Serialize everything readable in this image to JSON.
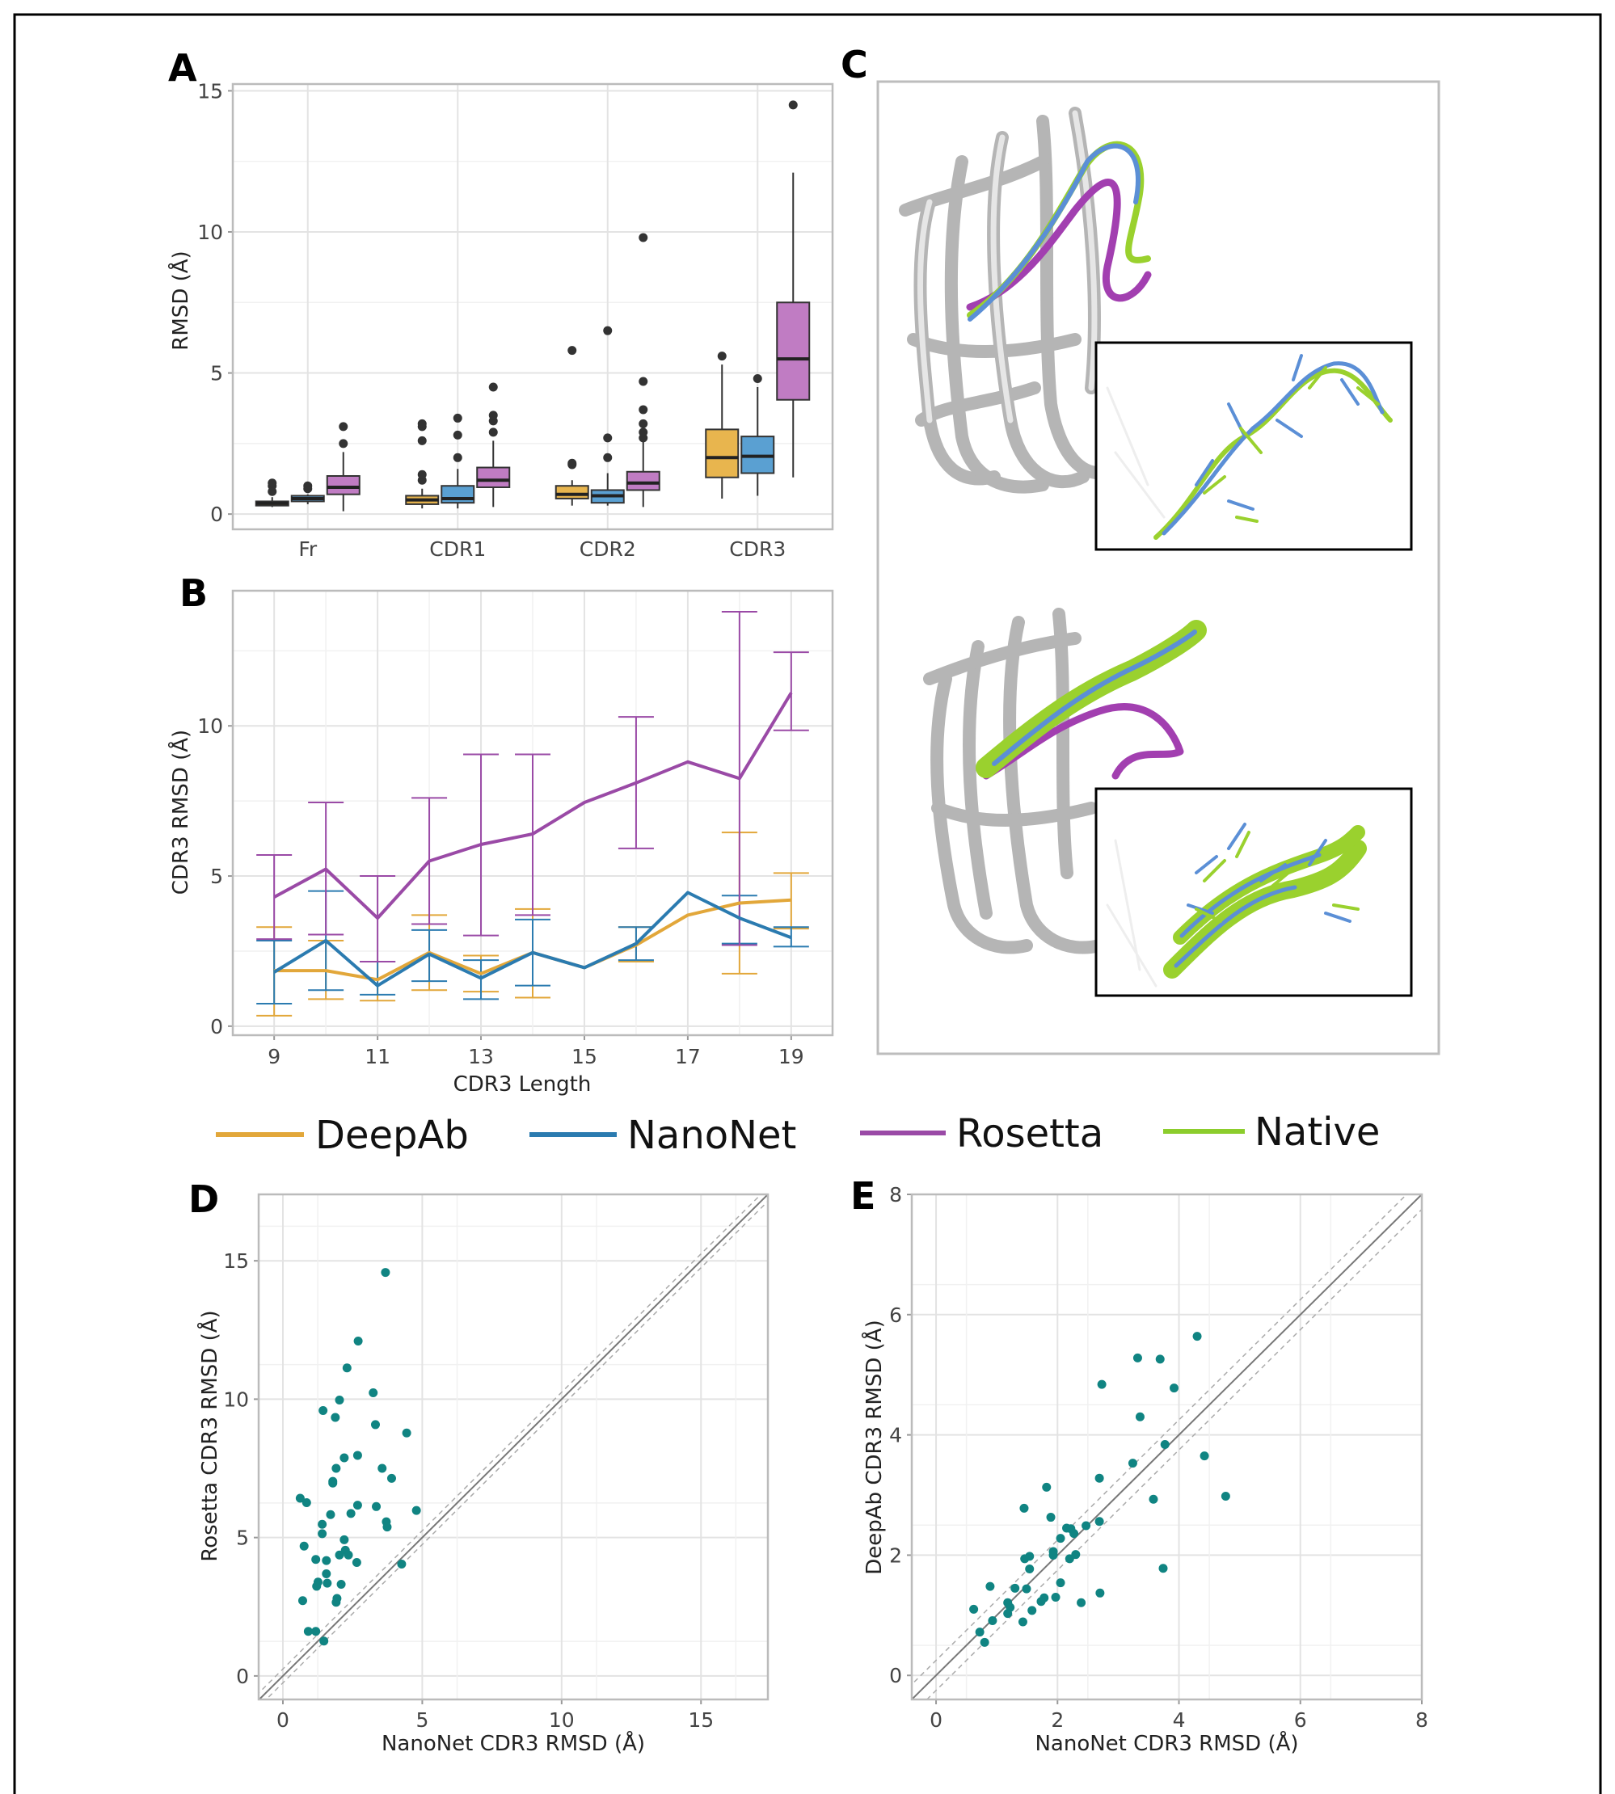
{
  "panels": {
    "a": "A",
    "b": "B",
    "c": "C",
    "d": "D",
    "e": "E"
  },
  "legend": {
    "entries": [
      {
        "name": "DeepAb",
        "color": "#e2a73a"
      },
      {
        "name": "NanoNet",
        "color": "#2b7bb0"
      },
      {
        "name": "Rosetta",
        "color": "#9a4aa6"
      },
      {
        "name": "Native",
        "color": "#8ccd2c"
      }
    ]
  },
  "panel_c": {
    "description_colors": {
      "framework": "#c8c8c8",
      "deepab_nanonet_loop": "#5b8fd6",
      "rosetta_loop": "#a23fb0",
      "native_loop": "#9ad12e"
    }
  },
  "chart_data": [
    {
      "id": "A",
      "type": "box",
      "ylabel": "RMSD (Å)",
      "xlabel": "",
      "categories": [
        "Fr",
        "CDR1",
        "CDR2",
        "CDR3"
      ],
      "series": [
        "DeepAb",
        "NanoNet",
        "Rosetta"
      ],
      "fills": [
        "#e8b54e",
        "#5aa0d2",
        "#c07cc3"
      ],
      "yticks": [
        "0",
        "5",
        "10",
        "15"
      ],
      "ylim": [
        -0.54,
        15.24
      ],
      "grid": true,
      "groups": [
        {
          "category": "Fr",
          "boxes": [
            {
              "series": "DeepAb",
              "low": 0.25,
              "q1": 0.3,
              "median": 0.38,
              "q3": 0.45,
              "high": 0.6,
              "outliers": [
                0.8,
                1.0,
                1.1
              ]
            },
            {
              "series": "NanoNet",
              "low": 0.35,
              "q1": 0.45,
              "median": 0.55,
              "q3": 0.65,
              "high": 0.7,
              "outliers": [
                0.9,
                1.0
              ]
            },
            {
              "series": "Rosetta",
              "low": 0.1,
              "q1": 0.7,
              "median": 0.95,
              "q3": 1.35,
              "high": 2.2,
              "outliers": [
                2.5,
                3.1
              ]
            }
          ]
        },
        {
          "category": "CDR1",
          "boxes": [
            {
              "series": "DeepAb",
              "low": 0.2,
              "q1": 0.35,
              "median": 0.5,
              "q3": 0.65,
              "high": 0.9,
              "outliers": [
                1.2,
                1.4,
                2.6,
                3.1,
                3.2
              ]
            },
            {
              "series": "NanoNet",
              "low": 0.2,
              "q1": 0.4,
              "median": 0.55,
              "q3": 1.0,
              "high": 1.6,
              "outliers": [
                2.0,
                2.8,
                3.4
              ]
            },
            {
              "series": "Rosetta",
              "low": 0.25,
              "q1": 0.95,
              "median": 1.2,
              "q3": 1.65,
              "high": 2.6,
              "outliers": [
                2.9,
                3.3,
                3.5,
                4.5
              ]
            }
          ]
        },
        {
          "category": "CDR2",
          "boxes": [
            {
              "series": "DeepAb",
              "low": 0.3,
              "q1": 0.55,
              "median": 0.7,
              "q3": 1.0,
              "high": 1.2,
              "outliers": [
                1.75,
                1.8,
                5.8
              ]
            },
            {
              "series": "NanoNet",
              "low": 0.3,
              "q1": 0.4,
              "median": 0.65,
              "q3": 0.85,
              "high": 1.45,
              "outliers": [
                2.0,
                2.7,
                6.5
              ]
            },
            {
              "series": "Rosetta",
              "low": 0.25,
              "q1": 0.85,
              "median": 1.1,
              "q3": 1.5,
              "high": 2.6,
              "outliers": [
                2.7,
                2.9,
                3.2,
                3.7,
                4.7,
                9.8
              ]
            }
          ]
        },
        {
          "category": "CDR3",
          "boxes": [
            {
              "series": "DeepAb",
              "low": 0.55,
              "q1": 1.3,
              "median": 2.0,
              "q3": 3.0,
              "high": 5.3,
              "outliers": [
                5.6
              ]
            },
            {
              "series": "NanoNet",
              "low": 0.65,
              "q1": 1.45,
              "median": 2.05,
              "q3": 2.75,
              "high": 4.5,
              "outliers": [
                4.8
              ]
            },
            {
              "series": "Rosetta",
              "low": 1.3,
              "q1": 4.05,
              "median": 5.5,
              "q3": 7.5,
              "high": 12.1,
              "outliers": [
                14.5
              ]
            }
          ]
        }
      ]
    },
    {
      "id": "B",
      "type": "line",
      "xlabel": "CDR3 Length",
      "ylabel": "CDR3 RMSD (Å)",
      "x": [
        9,
        10,
        11,
        12,
        13,
        14,
        15,
        16,
        17,
        18,
        19
      ],
      "xticks": [
        "9",
        "11",
        "13",
        "15",
        "17",
        "19"
      ],
      "yticks": [
        "0",
        "5",
        "10"
      ],
      "xlim": [
        8.2,
        19.8
      ],
      "ylim": [
        -0.3,
        14.5
      ],
      "grid": true,
      "series": [
        {
          "name": "DeepAb",
          "color": "#e2a73a",
          "values": [
            1.85,
            1.85,
            1.55,
            2.45,
            1.75,
            2.45,
            1.95,
            2.7,
            3.7,
            4.1,
            4.2
          ],
          "err_low": [
            0.35,
            0.9,
            0.85,
            1.2,
            1.15,
            0.95,
            null,
            2.15,
            null,
            1.75,
            3.25
          ],
          "err_high": [
            3.3,
            2.85,
            2.15,
            3.7,
            2.35,
            3.9,
            null,
            3.3,
            null,
            6.45,
            5.1
          ]
        },
        {
          "name": "NanoNet",
          "color": "#2b7bb0",
          "values": [
            1.8,
            2.85,
            1.35,
            2.4,
            1.6,
            2.45,
            1.95,
            2.75,
            4.45,
            3.6,
            2.95
          ],
          "err_low": [
            0.75,
            1.2,
            1.05,
            1.5,
            0.9,
            1.35,
            null,
            2.2,
            null,
            2.75,
            2.65
          ],
          "err_high": [
            2.85,
            4.5,
            2.15,
            3.2,
            2.2,
            3.55,
            null,
            3.3,
            null,
            4.35,
            3.3
          ]
        },
        {
          "name": "Rosetta",
          "color": "#9a4aa6",
          "values": [
            4.3,
            5.23,
            3.6,
            5.5,
            6.05,
            6.4,
            7.45,
            8.1,
            8.8,
            8.25,
            11.1
          ],
          "err_low": [
            2.9,
            3.05,
            2.15,
            3.4,
            3.02,
            3.7,
            null,
            5.92,
            null,
            2.7,
            9.85
          ],
          "err_high": [
            5.7,
            7.45,
            5.0,
            7.6,
            9.05,
            9.05,
            null,
            10.3,
            null,
            13.8,
            12.45
          ]
        }
      ]
    },
    {
      "id": "D",
      "type": "scatter",
      "xlabel": "NanoNet CDR3 RMSD (Å)",
      "ylabel": "Rosetta CDR3 RMSD (Å)",
      "xticks": [
        "0",
        "5",
        "10",
        "15"
      ],
      "yticks": [
        "0",
        "5",
        "10",
        "15"
      ],
      "xlim": [
        -0.87,
        17.4
      ],
      "ylim": [
        -0.85,
        17.4
      ],
      "grid": true,
      "reference_lines": {
        "identity": true,
        "dashed_offset": 0.25
      },
      "color": "#108482",
      "points": [
        [
          3.68,
          14.58
        ],
        [
          2.7,
          12.1
        ],
        [
          2.3,
          11.13
        ],
        [
          3.24,
          10.23
        ],
        [
          2.03,
          9.97
        ],
        [
          1.44,
          9.59
        ],
        [
          1.88,
          9.34
        ],
        [
          3.32,
          9.08
        ],
        [
          4.44,
          8.78
        ],
        [
          2.2,
          7.88
        ],
        [
          2.68,
          7.97
        ],
        [
          1.91,
          7.5
        ],
        [
          3.56,
          7.5
        ],
        [
          3.9,
          7.14
        ],
        [
          1.79,
          7.03
        ],
        [
          1.79,
          6.97
        ],
        [
          0.62,
          6.42
        ],
        [
          0.85,
          6.26
        ],
        [
          2.68,
          6.17
        ],
        [
          3.35,
          6.12
        ],
        [
          4.79,
          5.98
        ],
        [
          2.44,
          5.87
        ],
        [
          1.71,
          5.83
        ],
        [
          3.71,
          5.57
        ],
        [
          3.74,
          5.38
        ],
        [
          1.41,
          5.48
        ],
        [
          1.41,
          5.14
        ],
        [
          2.2,
          4.92
        ],
        [
          0.76,
          4.69
        ],
        [
          2.24,
          4.54
        ],
        [
          2.35,
          4.37
        ],
        [
          2.03,
          4.37
        ],
        [
          1.18,
          4.21
        ],
        [
          1.56,
          4.17
        ],
        [
          2.65,
          4.1
        ],
        [
          4.26,
          4.04
        ],
        [
          1.56,
          3.69
        ],
        [
          2.09,
          3.31
        ],
        [
          1.26,
          3.39
        ],
        [
          1.59,
          3.35
        ],
        [
          1.21,
          3.24
        ],
        [
          1.94,
          2.8
        ],
        [
          0.71,
          2.72
        ],
        [
          1.91,
          2.66
        ],
        [
          0.91,
          1.61
        ],
        [
          1.18,
          1.61
        ],
        [
          1.47,
          1.26
        ]
      ]
    },
    {
      "id": "E",
      "type": "scatter",
      "xlabel": "NanoNet CDR3 RMSD (Å)",
      "ylabel": "DeepAb CDR3 RMSD (Å)",
      "xticks": [
        "0",
        "2",
        "4",
        "6",
        "8"
      ],
      "yticks": [
        "0",
        "2",
        "4",
        "6",
        "8"
      ],
      "xlim": [
        -0.4,
        8.0
      ],
      "ylim": [
        -0.4,
        8.0
      ],
      "grid": true,
      "reference_lines": {
        "identity": true,
        "dashed_offset": 0.25
      },
      "color": "#108482",
      "points": [
        [
          4.3,
          5.64
        ],
        [
          3.32,
          5.28
        ],
        [
          3.69,
          5.26
        ],
        [
          2.73,
          4.84
        ],
        [
          3.92,
          4.78
        ],
        [
          3.36,
          4.3
        ],
        [
          3.77,
          3.84
        ],
        [
          4.42,
          3.65
        ],
        [
          3.24,
          3.53
        ],
        [
          2.69,
          3.28
        ],
        [
          1.82,
          3.13
        ],
        [
          4.77,
          2.98
        ],
        [
          3.58,
          2.93
        ],
        [
          1.45,
          2.78
        ],
        [
          1.89,
          2.63
        ],
        [
          2.69,
          2.56
        ],
        [
          2.47,
          2.49
        ],
        [
          2.15,
          2.45
        ],
        [
          2.22,
          2.44
        ],
        [
          2.27,
          2.36
        ],
        [
          2.05,
          2.28
        ],
        [
          1.93,
          2.06
        ],
        [
          1.93,
          2.0
        ],
        [
          2.3,
          2.01
        ],
        [
          1.54,
          1.98
        ],
        [
          2.2,
          1.94
        ],
        [
          1.46,
          1.94
        ],
        [
          1.54,
          1.77
        ],
        [
          3.74,
          1.78
        ],
        [
          2.05,
          1.54
        ],
        [
          0.89,
          1.48
        ],
        [
          1.3,
          1.45
        ],
        [
          1.49,
          1.44
        ],
        [
          2.7,
          1.37
        ],
        [
          1.97,
          1.3
        ],
        [
          1.78,
          1.29
        ],
        [
          1.73,
          1.23
        ],
        [
          1.18,
          1.21
        ],
        [
          2.39,
          1.21
        ],
        [
          1.22,
          1.13
        ],
        [
          0.62,
          1.1
        ],
        [
          1.58,
          1.08
        ],
        [
          1.18,
          1.03
        ],
        [
          0.93,
          0.91
        ],
        [
          1.43,
          0.89
        ],
        [
          0.72,
          0.72
        ],
        [
          0.8,
          0.55
        ]
      ]
    }
  ]
}
